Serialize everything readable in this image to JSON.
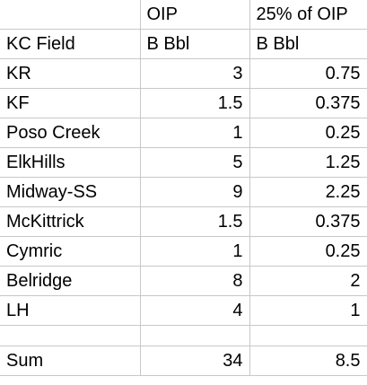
{
  "header": {
    "row1": [
      "",
      "OIP",
      "25% of OIP"
    ],
    "row2": [
      "KC Field",
      "B Bbl",
      "B Bbl"
    ]
  },
  "rows": [
    {
      "field": "KR",
      "oip": "3",
      "pct25": "0.75"
    },
    {
      "field": "KF",
      "oip": "1.5",
      "pct25": "0.375"
    },
    {
      "field": "Poso Creek",
      "oip": "1",
      "pct25": "0.25"
    },
    {
      "field": "ElkHills",
      "oip": "5",
      "pct25": "1.25"
    },
    {
      "field": "Midway-SS",
      "oip": "9",
      "pct25": "2.25"
    },
    {
      "field": "McKittrick",
      "oip": "1.5",
      "pct25": "0.375"
    },
    {
      "field": "Cymric",
      "oip": "1",
      "pct25": "0.25"
    },
    {
      "field": "Belridge",
      "oip": "8",
      "pct25": "2"
    },
    {
      "field": "LH",
      "oip": "4",
      "pct25": "1"
    }
  ],
  "sum": {
    "label": "Sum",
    "oip": "34",
    "pct25": "8.5"
  }
}
